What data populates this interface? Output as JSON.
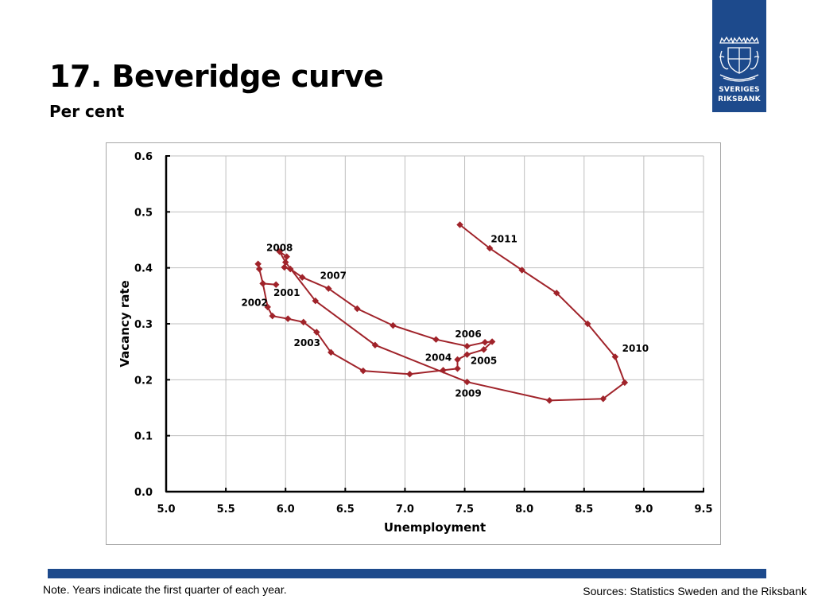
{
  "slide": {
    "title": "17. Beveridge curve",
    "subtitle": "Per cent",
    "note": "Note. Years indicate the first quarter of each year.",
    "sources": "Sources: Statistics Sweden and the Riksbank",
    "logo_line1": "SVERIGES",
    "logo_line2": "RIKSBANK",
    "brand_color": "#1d4a8c"
  },
  "chart_data": {
    "type": "line",
    "xlabel": "Unemployment",
    "ylabel": "Vacancy rate",
    "xlim": [
      5.0,
      9.5
    ],
    "ylim": [
      0.0,
      0.6
    ],
    "xticks": [
      "5.0",
      "5.5",
      "6.0",
      "6.5",
      "7.0",
      "7.5",
      "8.0",
      "8.5",
      "9.0",
      "9.5"
    ],
    "yticks": [
      "0.0",
      "0.1",
      "0.2",
      "0.3",
      "0.4",
      "0.5",
      "0.6"
    ],
    "grid": true,
    "line_color": "#a0232a",
    "series": [
      {
        "points": [
          [
            5.92,
            0.37
          ],
          [
            5.81,
            0.372
          ],
          [
            5.78,
            0.398
          ],
          [
            5.77,
            0.407
          ],
          [
            5.81,
            0.372
          ],
          [
            5.85,
            0.33
          ],
          [
            5.89,
            0.314
          ],
          [
            6.02,
            0.309
          ],
          [
            6.15,
            0.303
          ],
          [
            6.26,
            0.285
          ],
          [
            6.38,
            0.249
          ],
          [
            6.65,
            0.216
          ],
          [
            7.04,
            0.21
          ],
          [
            7.32,
            0.217
          ],
          [
            7.44,
            0.22
          ],
          [
            7.44,
            0.236
          ],
          [
            7.52,
            0.245
          ],
          [
            7.66,
            0.254
          ],
          [
            7.73,
            0.268
          ],
          [
            7.67,
            0.267
          ],
          [
            7.52,
            0.26
          ],
          [
            7.26,
            0.272
          ],
          [
            6.9,
            0.297
          ],
          [
            6.6,
            0.327
          ],
          [
            6.36,
            0.363
          ],
          [
            6.14,
            0.383
          ],
          [
            6.04,
            0.398
          ],
          [
            5.99,
            0.401
          ],
          [
            6.01,
            0.42
          ],
          [
            5.95,
            0.429
          ],
          [
            6.0,
            0.41
          ],
          [
            6.25,
            0.341
          ],
          [
            6.75,
            0.262
          ],
          [
            7.52,
            0.196
          ],
          [
            8.21,
            0.163
          ],
          [
            8.66,
            0.166
          ],
          [
            8.84,
            0.195
          ],
          [
            8.76,
            0.241
          ],
          [
            8.53,
            0.3
          ],
          [
            8.27,
            0.355
          ],
          [
            7.98,
            0.396
          ],
          [
            7.71,
            0.435
          ],
          [
            7.46,
            0.477
          ]
        ]
      }
    ],
    "annotations": [
      {
        "text": "2008",
        "x": 5.95,
        "y": 0.43
      },
      {
        "text": "2007",
        "x": 6.4,
        "y": 0.38
      },
      {
        "text": "2001",
        "x": 6.01,
        "y": 0.35
      },
      {
        "text": "2002",
        "x": 5.74,
        "y": 0.332
      },
      {
        "text": "2003",
        "x": 6.18,
        "y": 0.26
      },
      {
        "text": "2006",
        "x": 7.53,
        "y": 0.276
      },
      {
        "text": "2004",
        "x": 7.28,
        "y": 0.234
      },
      {
        "text": "2005",
        "x": 7.66,
        "y": 0.228
      },
      {
        "text": "2009",
        "x": 7.53,
        "y": 0.17
      },
      {
        "text": "2010",
        "x": 8.93,
        "y": 0.25
      },
      {
        "text": "2011",
        "x": 7.83,
        "y": 0.446
      }
    ]
  }
}
